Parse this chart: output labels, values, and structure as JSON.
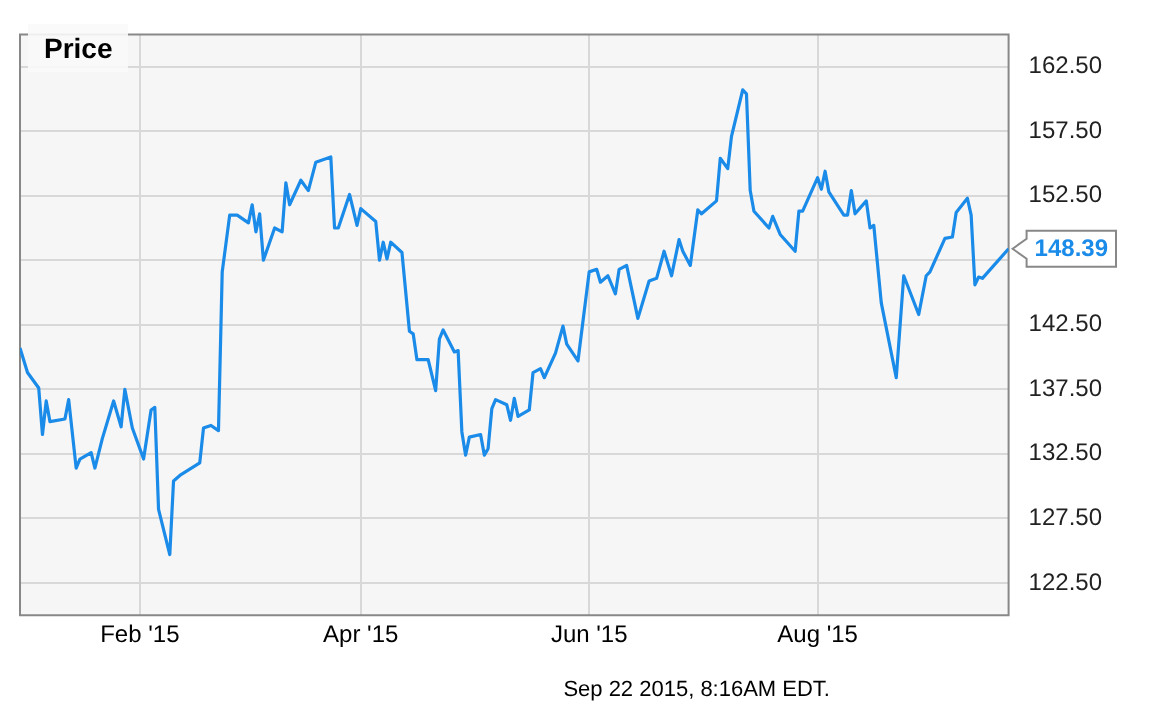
{
  "chart_data": {
    "type": "line",
    "title": "Price",
    "x": [
      "2014-12-31",
      "2015-01-02",
      "2015-01-05",
      "2015-01-06",
      "2015-01-07",
      "2015-01-08",
      "2015-01-12",
      "2015-01-13",
      "2015-01-15",
      "2015-01-16",
      "2015-01-19",
      "2015-01-20",
      "2015-01-22",
      "2015-01-25",
      "2015-01-27",
      "2015-01-28",
      "2015-01-30",
      "2015-02-02",
      "2015-02-04",
      "2015-02-05",
      "2015-02-06",
      "2015-02-09",
      "2015-02-10",
      "2015-02-12",
      "2015-02-17",
      "2015-02-18",
      "2015-02-20",
      "2015-02-22",
      "2015-02-23",
      "2015-02-25",
      "2015-02-27",
      "2015-03-02",
      "2015-03-03",
      "2015-03-04",
      "2015-03-05",
      "2015-03-06",
      "2015-03-09",
      "2015-03-11",
      "2015-03-12",
      "2015-03-13",
      "2015-03-16",
      "2015-03-18",
      "2015-03-20",
      "2015-03-24",
      "2015-03-25",
      "2015-03-26",
      "2015-03-29",
      "2015-03-31",
      "2015-04-01",
      "2015-04-05",
      "2015-04-06",
      "2015-04-07",
      "2015-04-08",
      "2015-04-09",
      "2015-04-12",
      "2015-04-14",
      "2015-04-15",
      "2015-04-16",
      "2015-04-19",
      "2015-04-21",
      "2015-04-22",
      "2015-04-23",
      "2015-04-26",
      "2015-04-27",
      "2015-04-28",
      "2015-04-29",
      "2015-04-30",
      "2015-05-03",
      "2015-05-04",
      "2015-05-05",
      "2015-05-06",
      "2015-05-07",
      "2015-05-10",
      "2015-05-11",
      "2015-05-12",
      "2015-05-13",
      "2015-05-16",
      "2015-05-17",
      "2015-05-19",
      "2015-05-20",
      "2015-05-23",
      "2015-05-25",
      "2015-05-26",
      "2015-05-29",
      "2015-06-01",
      "2015-06-03",
      "2015-06-04",
      "2015-06-06",
      "2015-06-08",
      "2015-06-09",
      "2015-06-11",
      "2015-06-14",
      "2015-06-17",
      "2015-06-19",
      "2015-06-21",
      "2015-06-23",
      "2015-06-25",
      "2015-06-26",
      "2015-06-28",
      "2015-06-30",
      "2015-07-01",
      "2015-07-05",
      "2015-07-06",
      "2015-07-08",
      "2015-07-09",
      "2015-07-12",
      "2015-07-13",
      "2015-07-14",
      "2015-07-15",
      "2015-07-19",
      "2015-07-20",
      "2015-07-22",
      "2015-07-26",
      "2015-07-27",
      "2015-07-28",
      "2015-08-01",
      "2015-08-02",
      "2015-08-03",
      "2015-08-04",
      "2015-08-08",
      "2015-08-09",
      "2015-08-10",
      "2015-08-11",
      "2015-08-14",
      "2015-08-15",
      "2015-08-16",
      "2015-08-18",
      "2015-08-22",
      "2015-08-24",
      "2015-08-28",
      "2015-08-30",
      "2015-08-31",
      "2015-09-04",
      "2015-09-06",
      "2015-09-07",
      "2015-09-10",
      "2015-09-11",
      "2015-09-12",
      "2015-09-13",
      "2015-09-14",
      "2015-09-21"
    ],
    "series": [
      {
        "color": "#1a8be8",
        "values": [
          140.7,
          138.8,
          137.6,
          134.0,
          136.6,
          135.0,
          135.2,
          136.7,
          131.4,
          132.1,
          132.6,
          131.4,
          133.7,
          136.6,
          134.6,
          137.5,
          134.5,
          132.1,
          135.9,
          136.1,
          128.2,
          124.7,
          130.4,
          130.9,
          131.8,
          134.5,
          134.7,
          134.3,
          146.6,
          151.0,
          151.0,
          150.4,
          151.8,
          149.7,
          151.1,
          147.5,
          150.0,
          149.7,
          153.5,
          151.8,
          153.7,
          152.9,
          155.1,
          155.5,
          150.0,
          150.0,
          152.6,
          150.2,
          151.5,
          150.5,
          147.5,
          148.9,
          147.6,
          148.9,
          148.1,
          142.0,
          141.8,
          139.8,
          139.8,
          137.4,
          141.4,
          142.1,
          140.4,
          140.5,
          134.2,
          132.4,
          133.8,
          134.0,
          132.4,
          132.9,
          136.0,
          136.7,
          136.3,
          135.1,
          136.8,
          135.4,
          135.9,
          138.8,
          139.1,
          138.4,
          140.3,
          142.4,
          141.0,
          139.7,
          146.6,
          146.8,
          145.8,
          146.3,
          144.9,
          146.8,
          147.1,
          143.0,
          145.9,
          146.1,
          148.2,
          146.3,
          149.1,
          148.2,
          147.1,
          151.4,
          151.1,
          152.1,
          155.4,
          154.6,
          157.1,
          160.7,
          160.4,
          152.9,
          151.3,
          150.0,
          150.9,
          149.5,
          148.2,
          151.3,
          151.3,
          153.9,
          153.0,
          154.4,
          152.8,
          151.0,
          151.0,
          152.9,
          151.1,
          152.1,
          150.0,
          150.2,
          144.2,
          138.4,
          146.3,
          143.3,
          146.3,
          146.6,
          149.2,
          149.3,
          151.2,
          152.3,
          151.0,
          145.6,
          146.2,
          146.1,
          148.39
        ],
        "value_labels": [
          null,
          null,
          null,
          null,
          null,
          null,
          null,
          null,
          null,
          null,
          null,
          null,
          null,
          null,
          null,
          null,
          null,
          null,
          null,
          null,
          null,
          null,
          null,
          null,
          null,
          null,
          null,
          null,
          null,
          null,
          null,
          null,
          null,
          null,
          null,
          null,
          null,
          null,
          null,
          null,
          null,
          null,
          null,
          null,
          null,
          null,
          null,
          null,
          null,
          null,
          null,
          null,
          null,
          null,
          null,
          null,
          null,
          null,
          null,
          null,
          null,
          null,
          null,
          null,
          null,
          null,
          null,
          null,
          null,
          null,
          null,
          null,
          null,
          null,
          null,
          null,
          null,
          null,
          null,
          null,
          null,
          null,
          null,
          null,
          null,
          null,
          null,
          null,
          null,
          null,
          null,
          null,
          null,
          null,
          null,
          null,
          null,
          null,
          null,
          null,
          null,
          null,
          null,
          null,
          null,
          null,
          null,
          null,
          null,
          null,
          null,
          null,
          null,
          null,
          null,
          null,
          null,
          null,
          null,
          null,
          null,
          null,
          null,
          null,
          null,
          null,
          null,
          null,
          null,
          null,
          null,
          null,
          null,
          null,
          null,
          null,
          null,
          null,
          null,
          null,
          "148.39"
        ]
      }
    ],
    "xlim": [
      "2014-12-31",
      "2015-09-21"
    ],
    "xticks": [
      {
        "value": "2015-02-01",
        "label": "Feb '15"
      },
      {
        "value": "2015-04-01",
        "label": "Apr '15"
      },
      {
        "value": "2015-06-01",
        "label": "Jun '15"
      },
      {
        "value": "2015-08-01",
        "label": "Aug '15"
      }
    ],
    "ylim": [
      120,
      165
    ],
    "yticks": [
      {
        "value": 122.5,
        "label": "122.50"
      },
      {
        "value": 127.5,
        "label": "127.50"
      },
      {
        "value": 132.5,
        "label": "132.50"
      },
      {
        "value": 137.5,
        "label": "137.50"
      },
      {
        "value": 142.5,
        "label": "142.50"
      },
      {
        "value": 147.5,
        "label": null
      },
      {
        "value": 152.5,
        "label": "152.50"
      },
      {
        "value": 157.5,
        "label": "157.50"
      },
      {
        "value": 162.5,
        "label": "162.50"
      }
    ],
    "grid": true,
    "marker": "none",
    "line_style": "solid",
    "annotations": [
      "Sep 22 2015, 8:16AM EDT."
    ]
  }
}
